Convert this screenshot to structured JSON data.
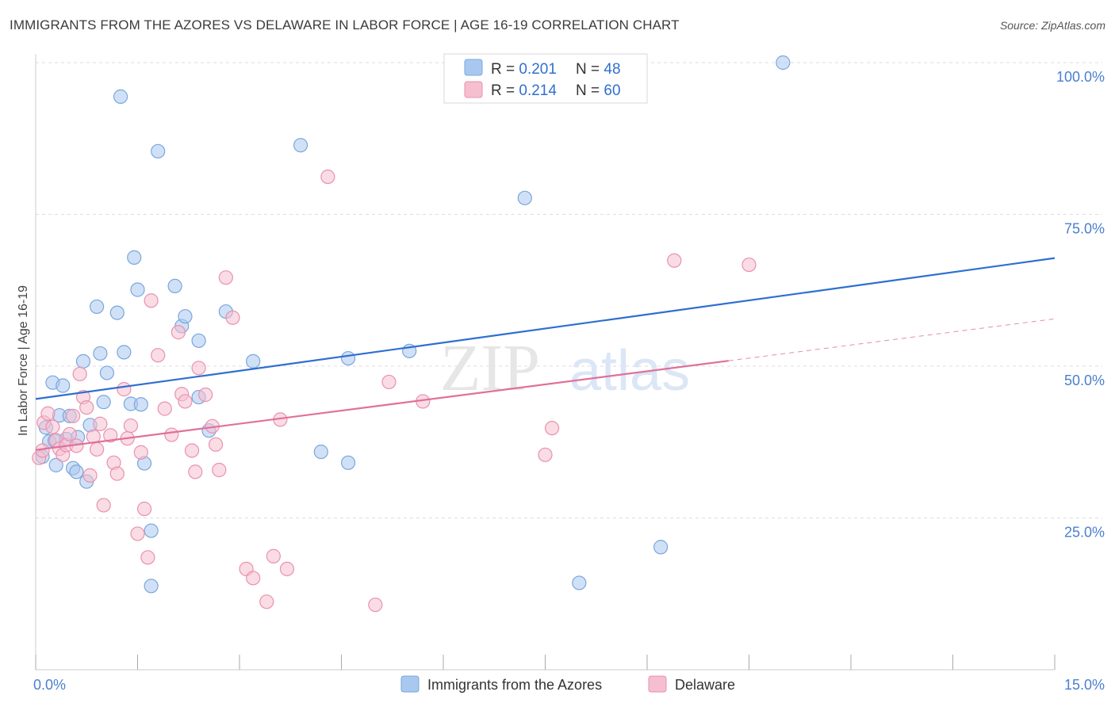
{
  "header": {
    "title": "IMMIGRANTS FROM THE AZORES VS DELAWARE IN LABOR FORCE | AGE 16-19 CORRELATION CHART",
    "source": "Source: ZipAtlas.com"
  },
  "watermark": {
    "part1": "ZIP",
    "part2": "atlas"
  },
  "colors": {
    "blue_fill": "#a9c8f0",
    "blue_stroke": "#7aa6dc",
    "blue_line": "#2f6fd0",
    "pink_fill": "#f5bfd0",
    "pink_stroke": "#e892ae",
    "pink_line": "#e0709a",
    "axis_text": "#4a7fd0",
    "grid": "#dddddd"
  },
  "chart_data": {
    "type": "scatter",
    "title": "IMMIGRANTS FROM THE AZORES VS DELAWARE IN LABOR FORCE | AGE 16-19 CORRELATION CHART",
    "xlabel": "",
    "ylabel": "In Labor Force | Age 16-19",
    "xlim": [
      0,
      15
    ],
    "ylim": [
      0,
      105
    ],
    "x_tick_labels": [
      "0.0%",
      "15.0%"
    ],
    "y_ticks": [
      25,
      50,
      75,
      100
    ],
    "y_tick_labels": [
      "25.0%",
      "50.0%",
      "75.0%",
      "100.0%"
    ],
    "grid": true,
    "legend_top": [
      {
        "r_label": "R = ",
        "r_value": "0.201",
        "n_label": "N = ",
        "n_value": "48"
      },
      {
        "r_label": "R = ",
        "r_value": "0.214",
        "n_label": "N = ",
        "n_value": "60"
      }
    ],
    "series": [
      {
        "name": "Immigrants from the Azores",
        "color": "blue",
        "trend": {
          "x0": 0,
          "y0": 44.6,
          "x1": 15,
          "y1": 67.8,
          "dash_from": null
        },
        "points": [
          [
            0.1,
            35.1
          ],
          [
            0.15,
            39.9
          ],
          [
            0.2,
            37.6
          ],
          [
            0.25,
            47.3
          ],
          [
            0.28,
            37.7
          ],
          [
            0.3,
            33.7
          ],
          [
            0.35,
            41.9
          ],
          [
            0.4,
            46.8
          ],
          [
            0.45,
            38.0
          ],
          [
            0.5,
            41.8
          ],
          [
            0.55,
            33.2
          ],
          [
            0.6,
            32.6
          ],
          [
            0.62,
            38.3
          ],
          [
            0.7,
            50.8
          ],
          [
            0.75,
            31.0
          ],
          [
            0.8,
            40.3
          ],
          [
            0.9,
            59.8
          ],
          [
            0.95,
            52.1
          ],
          [
            1.0,
            44.1
          ],
          [
            1.05,
            48.9
          ],
          [
            1.2,
            58.8
          ],
          [
            1.25,
            94.4
          ],
          [
            1.3,
            52.3
          ],
          [
            1.4,
            43.8
          ],
          [
            1.45,
            67.9
          ],
          [
            1.5,
            62.6
          ],
          [
            1.55,
            43.7
          ],
          [
            1.6,
            34.0
          ],
          [
            1.7,
            22.9
          ],
          [
            1.7,
            13.8
          ],
          [
            1.8,
            85.4
          ],
          [
            2.05,
            63.2
          ],
          [
            2.15,
            56.6
          ],
          [
            2.2,
            58.2
          ],
          [
            2.4,
            54.2
          ],
          [
            2.4,
            44.9
          ],
          [
            2.55,
            39.4
          ],
          [
            2.8,
            59.0
          ],
          [
            3.2,
            50.8
          ],
          [
            3.9,
            86.4
          ],
          [
            4.2,
            35.9
          ],
          [
            4.6,
            51.3
          ],
          [
            4.6,
            34.1
          ],
          [
            5.5,
            52.5
          ],
          [
            7.2,
            77.7
          ],
          [
            8.0,
            14.3
          ],
          [
            9.2,
            20.2
          ],
          [
            11.0,
            100.0
          ]
        ]
      },
      {
        "name": "Delaware",
        "color": "pink",
        "trend": {
          "x0": 0,
          "y0": 36.2,
          "x1": 15,
          "y1": 57.8,
          "dash_from": 10.2
        },
        "points": [
          [
            0.05,
            34.9
          ],
          [
            0.1,
            36.1
          ],
          [
            0.12,
            40.7
          ],
          [
            0.18,
            42.2
          ],
          [
            0.25,
            40.0
          ],
          [
            0.3,
            37.8
          ],
          [
            0.35,
            36.4
          ],
          [
            0.4,
            35.4
          ],
          [
            0.45,
            37.0
          ],
          [
            0.5,
            38.8
          ],
          [
            0.55,
            41.8
          ],
          [
            0.6,
            36.9
          ],
          [
            0.65,
            48.7
          ],
          [
            0.7,
            44.9
          ],
          [
            0.75,
            43.2
          ],
          [
            0.8,
            32.0
          ],
          [
            0.85,
            38.4
          ],
          [
            0.9,
            36.3
          ],
          [
            0.95,
            40.5
          ],
          [
            1.0,
            27.1
          ],
          [
            1.1,
            38.6
          ],
          [
            1.15,
            34.1
          ],
          [
            1.2,
            32.3
          ],
          [
            1.3,
            46.2
          ],
          [
            1.35,
            38.1
          ],
          [
            1.4,
            40.2
          ],
          [
            1.5,
            22.4
          ],
          [
            1.55,
            35.8
          ],
          [
            1.6,
            26.5
          ],
          [
            1.65,
            18.5
          ],
          [
            1.7,
            60.8
          ],
          [
            1.8,
            51.8
          ],
          [
            1.9,
            43.0
          ],
          [
            2.0,
            38.7
          ],
          [
            2.1,
            55.6
          ],
          [
            2.15,
            45.4
          ],
          [
            2.2,
            44.2
          ],
          [
            2.3,
            36.1
          ],
          [
            2.35,
            32.6
          ],
          [
            2.4,
            49.7
          ],
          [
            2.5,
            45.3
          ],
          [
            2.6,
            40.1
          ],
          [
            2.65,
            37.1
          ],
          [
            2.7,
            32.9
          ],
          [
            2.8,
            64.6
          ],
          [
            2.9,
            58.0
          ],
          [
            3.1,
            16.6
          ],
          [
            3.2,
            15.1
          ],
          [
            3.4,
            11.2
          ],
          [
            3.5,
            18.7
          ],
          [
            3.6,
            41.2
          ],
          [
            3.7,
            16.6
          ],
          [
            4.3,
            81.2
          ],
          [
            5.0,
            10.7
          ],
          [
            5.2,
            47.4
          ],
          [
            5.7,
            44.2
          ],
          [
            7.5,
            35.4
          ],
          [
            7.6,
            39.8
          ],
          [
            9.4,
            67.4
          ],
          [
            10.5,
            66.7
          ]
        ]
      }
    ]
  },
  "legend_bottom": [
    {
      "label": "Immigrants from the Azores",
      "color": "blue"
    },
    {
      "label": "Delaware",
      "color": "pink"
    }
  ]
}
